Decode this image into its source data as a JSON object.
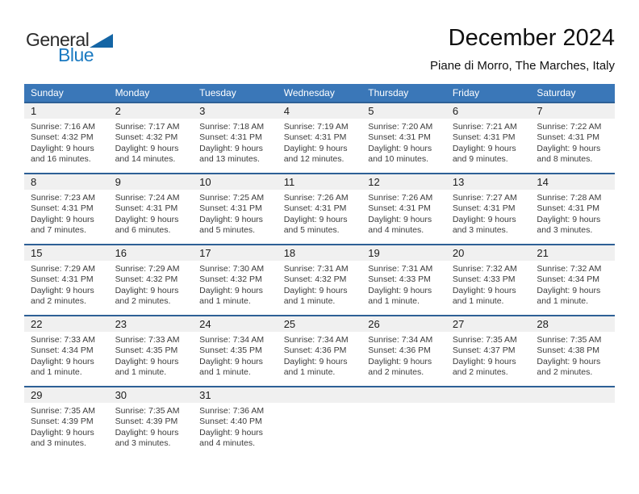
{
  "logo": {
    "general": "General",
    "blue": "Blue"
  },
  "header": {
    "title": "December 2024",
    "subtitle": "Piane di Morro, The Marches, Italy"
  },
  "weekdays": [
    "Sunday",
    "Monday",
    "Tuesday",
    "Wednesday",
    "Thursday",
    "Friday",
    "Saturday"
  ],
  "weeks": [
    [
      {
        "day": "1",
        "sunrise": "Sunrise: 7:16 AM",
        "sunset": "Sunset: 4:32 PM",
        "daylight1": "Daylight: 9 hours",
        "daylight2": "and 16 minutes."
      },
      {
        "day": "2",
        "sunrise": "Sunrise: 7:17 AM",
        "sunset": "Sunset: 4:32 PM",
        "daylight1": "Daylight: 9 hours",
        "daylight2": "and 14 minutes."
      },
      {
        "day": "3",
        "sunrise": "Sunrise: 7:18 AM",
        "sunset": "Sunset: 4:31 PM",
        "daylight1": "Daylight: 9 hours",
        "daylight2": "and 13 minutes."
      },
      {
        "day": "4",
        "sunrise": "Sunrise: 7:19 AM",
        "sunset": "Sunset: 4:31 PM",
        "daylight1": "Daylight: 9 hours",
        "daylight2": "and 12 minutes."
      },
      {
        "day": "5",
        "sunrise": "Sunrise: 7:20 AM",
        "sunset": "Sunset: 4:31 PM",
        "daylight1": "Daylight: 9 hours",
        "daylight2": "and 10 minutes."
      },
      {
        "day": "6",
        "sunrise": "Sunrise: 7:21 AM",
        "sunset": "Sunset: 4:31 PM",
        "daylight1": "Daylight: 9 hours",
        "daylight2": "and 9 minutes."
      },
      {
        "day": "7",
        "sunrise": "Sunrise: 7:22 AM",
        "sunset": "Sunset: 4:31 PM",
        "daylight1": "Daylight: 9 hours",
        "daylight2": "and 8 minutes."
      }
    ],
    [
      {
        "day": "8",
        "sunrise": "Sunrise: 7:23 AM",
        "sunset": "Sunset: 4:31 PM",
        "daylight1": "Daylight: 9 hours",
        "daylight2": "and 7 minutes."
      },
      {
        "day": "9",
        "sunrise": "Sunrise: 7:24 AM",
        "sunset": "Sunset: 4:31 PM",
        "daylight1": "Daylight: 9 hours",
        "daylight2": "and 6 minutes."
      },
      {
        "day": "10",
        "sunrise": "Sunrise: 7:25 AM",
        "sunset": "Sunset: 4:31 PM",
        "daylight1": "Daylight: 9 hours",
        "daylight2": "and 5 minutes."
      },
      {
        "day": "11",
        "sunrise": "Sunrise: 7:26 AM",
        "sunset": "Sunset: 4:31 PM",
        "daylight1": "Daylight: 9 hours",
        "daylight2": "and 5 minutes."
      },
      {
        "day": "12",
        "sunrise": "Sunrise: 7:26 AM",
        "sunset": "Sunset: 4:31 PM",
        "daylight1": "Daylight: 9 hours",
        "daylight2": "and 4 minutes."
      },
      {
        "day": "13",
        "sunrise": "Sunrise: 7:27 AM",
        "sunset": "Sunset: 4:31 PM",
        "daylight1": "Daylight: 9 hours",
        "daylight2": "and 3 minutes."
      },
      {
        "day": "14",
        "sunrise": "Sunrise: 7:28 AM",
        "sunset": "Sunset: 4:31 PM",
        "daylight1": "Daylight: 9 hours",
        "daylight2": "and 3 minutes."
      }
    ],
    [
      {
        "day": "15",
        "sunrise": "Sunrise: 7:29 AM",
        "sunset": "Sunset: 4:31 PM",
        "daylight1": "Daylight: 9 hours",
        "daylight2": "and 2 minutes."
      },
      {
        "day": "16",
        "sunrise": "Sunrise: 7:29 AM",
        "sunset": "Sunset: 4:32 PM",
        "daylight1": "Daylight: 9 hours",
        "daylight2": "and 2 minutes."
      },
      {
        "day": "17",
        "sunrise": "Sunrise: 7:30 AM",
        "sunset": "Sunset: 4:32 PM",
        "daylight1": "Daylight: 9 hours",
        "daylight2": "and 1 minute."
      },
      {
        "day": "18",
        "sunrise": "Sunrise: 7:31 AM",
        "sunset": "Sunset: 4:32 PM",
        "daylight1": "Daylight: 9 hours",
        "daylight2": "and 1 minute."
      },
      {
        "day": "19",
        "sunrise": "Sunrise: 7:31 AM",
        "sunset": "Sunset: 4:33 PM",
        "daylight1": "Daylight: 9 hours",
        "daylight2": "and 1 minute."
      },
      {
        "day": "20",
        "sunrise": "Sunrise: 7:32 AM",
        "sunset": "Sunset: 4:33 PM",
        "daylight1": "Daylight: 9 hours",
        "daylight2": "and 1 minute."
      },
      {
        "day": "21",
        "sunrise": "Sunrise: 7:32 AM",
        "sunset": "Sunset: 4:34 PM",
        "daylight1": "Daylight: 9 hours",
        "daylight2": "and 1 minute."
      }
    ],
    [
      {
        "day": "22",
        "sunrise": "Sunrise: 7:33 AM",
        "sunset": "Sunset: 4:34 PM",
        "daylight1": "Daylight: 9 hours",
        "daylight2": "and 1 minute."
      },
      {
        "day": "23",
        "sunrise": "Sunrise: 7:33 AM",
        "sunset": "Sunset: 4:35 PM",
        "daylight1": "Daylight: 9 hours",
        "daylight2": "and 1 minute."
      },
      {
        "day": "24",
        "sunrise": "Sunrise: 7:34 AM",
        "sunset": "Sunset: 4:35 PM",
        "daylight1": "Daylight: 9 hours",
        "daylight2": "and 1 minute."
      },
      {
        "day": "25",
        "sunrise": "Sunrise: 7:34 AM",
        "sunset": "Sunset: 4:36 PM",
        "daylight1": "Daylight: 9 hours",
        "daylight2": "and 1 minute."
      },
      {
        "day": "26",
        "sunrise": "Sunrise: 7:34 AM",
        "sunset": "Sunset: 4:36 PM",
        "daylight1": "Daylight: 9 hours",
        "daylight2": "and 2 minutes."
      },
      {
        "day": "27",
        "sunrise": "Sunrise: 7:35 AM",
        "sunset": "Sunset: 4:37 PM",
        "daylight1": "Daylight: 9 hours",
        "daylight2": "and 2 minutes."
      },
      {
        "day": "28",
        "sunrise": "Sunrise: 7:35 AM",
        "sunset": "Sunset: 4:38 PM",
        "daylight1": "Daylight: 9 hours",
        "daylight2": "and 2 minutes."
      }
    ],
    [
      {
        "day": "29",
        "sunrise": "Sunrise: 7:35 AM",
        "sunset": "Sunset: 4:39 PM",
        "daylight1": "Daylight: 9 hours",
        "daylight2": "and 3 minutes."
      },
      {
        "day": "30",
        "sunrise": "Sunrise: 7:35 AM",
        "sunset": "Sunset: 4:39 PM",
        "daylight1": "Daylight: 9 hours",
        "daylight2": "and 3 minutes."
      },
      {
        "day": "31",
        "sunrise": "Sunrise: 7:36 AM",
        "sunset": "Sunset: 4:40 PM",
        "daylight1": "Daylight: 9 hours",
        "daylight2": "and 4 minutes."
      },
      null,
      null,
      null,
      null
    ]
  ],
  "colors": {
    "weekday_header_bg": "#3a77b8",
    "weekday_header_text": "#ffffff",
    "week_top_border": "#2e6096",
    "day_number_band_bg": "#f0f0f0",
    "logo_blue": "#1b7ac1",
    "logo_triangle": "#1465a5",
    "body_text": "#3c3c3c",
    "title_text": "#111111"
  }
}
